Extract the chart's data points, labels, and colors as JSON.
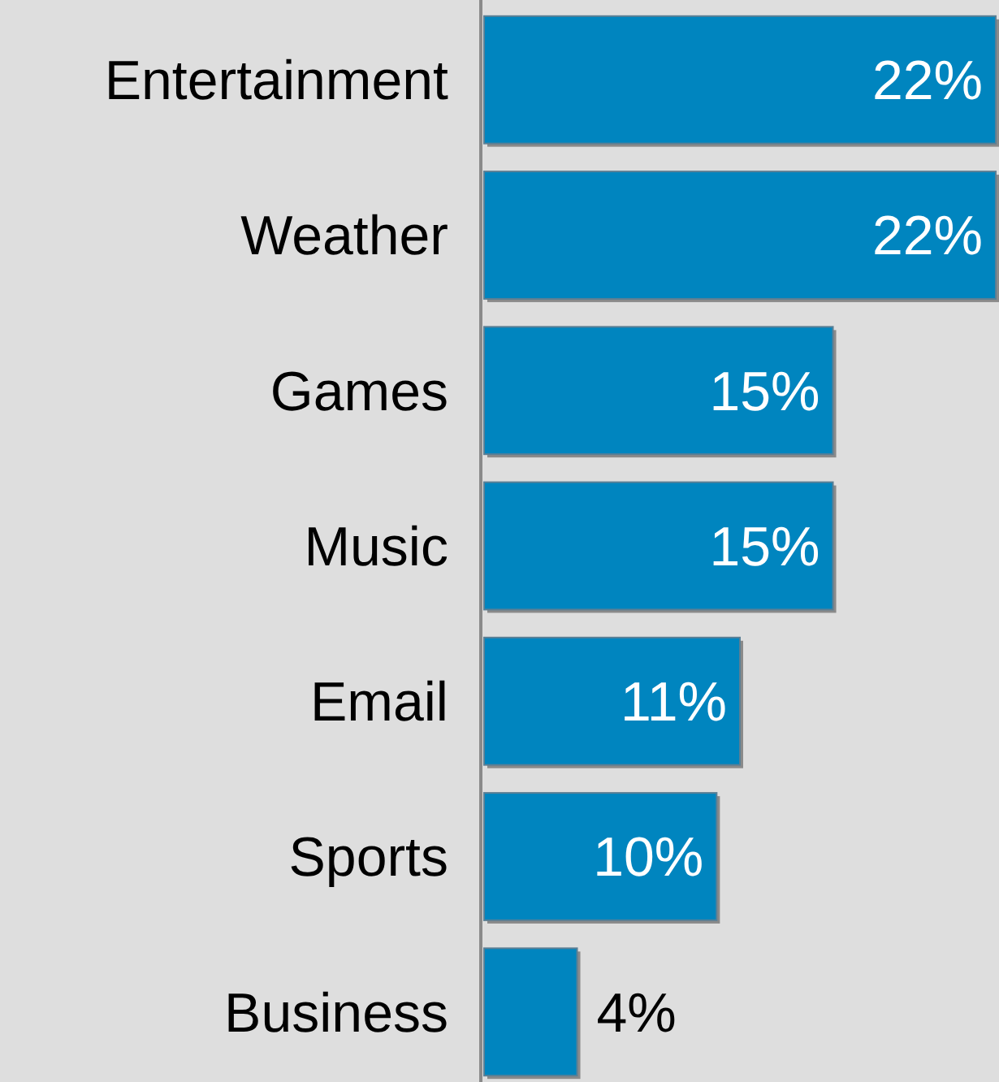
{
  "chart_data": {
    "type": "bar",
    "orientation": "horizontal",
    "categories": [
      "Entertainment",
      "Weather",
      "Games",
      "Music",
      "Email",
      "Sports",
      "Business"
    ],
    "values": [
      22,
      22,
      15,
      15,
      11,
      10,
      4
    ],
    "value_labels": [
      "22%",
      "22%",
      "15%",
      "15%",
      "11%",
      "10%",
      "4%"
    ],
    "color": "#0085bf"
  }
}
